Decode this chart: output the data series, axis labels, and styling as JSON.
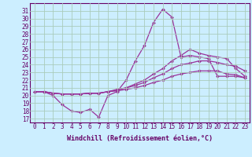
{
  "xlabel": "Windchill (Refroidissement éolien,°C)",
  "bg_color": "#cceeff",
  "line_color": "#993399",
  "grid_color": "#aaddcc",
  "spine_color": "#660066",
  "xlim": [
    -0.5,
    23.5
  ],
  "ylim": [
    16.5,
    32.0
  ],
  "yticks": [
    17,
    18,
    19,
    20,
    21,
    22,
    23,
    24,
    25,
    26,
    27,
    28,
    29,
    30,
    31
  ],
  "xticks": [
    0,
    1,
    2,
    3,
    4,
    5,
    6,
    7,
    8,
    9,
    10,
    11,
    12,
    13,
    14,
    15,
    16,
    17,
    18,
    19,
    20,
    21,
    22,
    23
  ],
  "series": [
    [
      20.5,
      20.5,
      20.0,
      18.8,
      18.0,
      17.8,
      18.2,
      17.2,
      20.0,
      20.5,
      22.0,
      24.5,
      26.5,
      29.5,
      31.2,
      30.2,
      25.0,
      25.2,
      25.0,
      24.8,
      22.5,
      22.5,
      22.5,
      22.3
    ],
    [
      20.5,
      20.5,
      20.3,
      20.2,
      20.2,
      20.2,
      20.3,
      20.3,
      20.5,
      20.8,
      21.0,
      21.5,
      22.0,
      22.8,
      23.5,
      24.5,
      25.2,
      26.0,
      25.5,
      25.2,
      25.0,
      24.8,
      23.5,
      22.5
    ],
    [
      20.5,
      20.5,
      20.3,
      20.2,
      20.2,
      20.2,
      20.3,
      20.3,
      20.5,
      20.7,
      21.0,
      21.3,
      21.7,
      22.3,
      22.8,
      23.5,
      24.0,
      24.2,
      24.5,
      24.5,
      24.3,
      24.0,
      23.8,
      23.2
    ],
    [
      20.5,
      20.5,
      20.3,
      20.2,
      20.2,
      20.2,
      20.3,
      20.3,
      20.5,
      20.6,
      20.8,
      21.0,
      21.3,
      21.7,
      22.0,
      22.5,
      22.8,
      23.0,
      23.2,
      23.2,
      23.2,
      22.8,
      22.7,
      22.3
    ]
  ],
  "tick_fontsize": 5.5,
  "xlabel_fontsize": 6.0
}
